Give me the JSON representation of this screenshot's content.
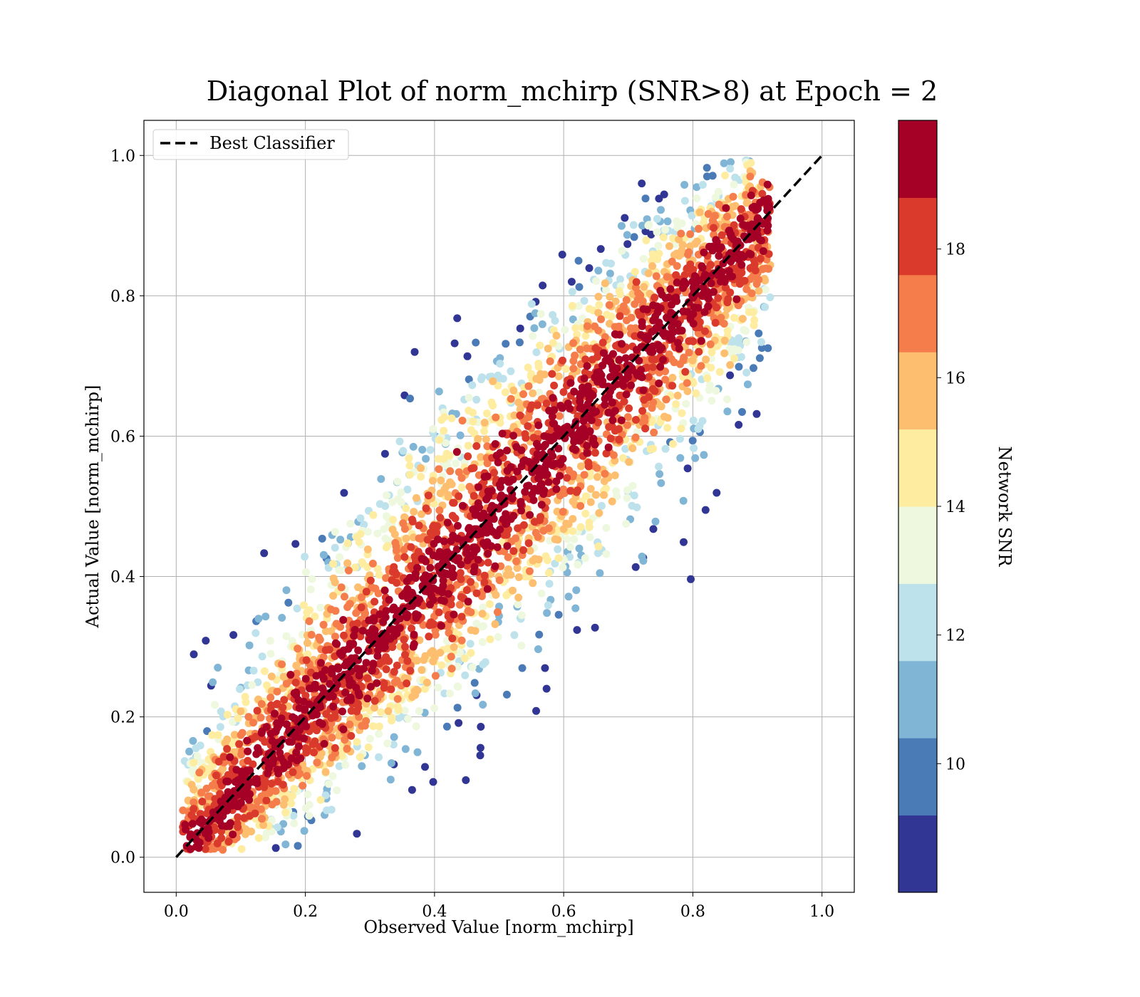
{
  "chart_data": {
    "type": "scatter",
    "title": "Diagonal Plot of norm_mchirp (SNR>8) at Epoch = 2",
    "xlabel": "Observed Value [norm_mchirp]",
    "ylabel": "Actual Value [norm_mchirp]",
    "xlim": [
      -0.05,
      1.05
    ],
    "ylim": [
      -0.05,
      1.05
    ],
    "xticks": [
      0.0,
      0.2,
      0.4,
      0.6,
      0.8,
      1.0
    ],
    "yticks": [
      0.0,
      0.2,
      0.4,
      0.6,
      0.8,
      1.0
    ],
    "grid": true,
    "legend": {
      "position": "top-left",
      "entries": [
        {
          "label": "Best Classifier",
          "style": "dashed",
          "color": "#000000"
        }
      ]
    },
    "reference_line": {
      "name": "Best Classifier",
      "x": [
        0.0,
        1.0
      ],
      "y": [
        0.0,
        1.0
      ]
    },
    "colorbar": {
      "label": "Network SNR",
      "ticks": [
        10,
        12,
        14,
        16,
        18
      ],
      "range": [
        8,
        20
      ],
      "bins": [
        {
          "from": 8,
          "to": 9.2,
          "color": "#313695"
        },
        {
          "from": 9.2,
          "to": 10.4,
          "color": "#4a7bb7"
        },
        {
          "from": 10.4,
          "to": 11.6,
          "color": "#80b5d5"
        },
        {
          "from": 11.6,
          "to": 12.8,
          "color": "#bde2ec"
        },
        {
          "from": 12.8,
          "to": 14.0,
          "color": "#eef8df"
        },
        {
          "from": 14.0,
          "to": 15.2,
          "color": "#feeda1"
        },
        {
          "from": 15.2,
          "to": 16.4,
          "color": "#fdbe6f"
        },
        {
          "from": 16.4,
          "to": 17.6,
          "color": "#f57d4b"
        },
        {
          "from": 17.6,
          "to": 18.8,
          "color": "#da3a2c"
        },
        {
          "from": 18.8,
          "to": 20.0,
          "color": "#a50026"
        }
      ]
    },
    "points_summary": {
      "x_range": [
        0.01,
        0.92
      ],
      "y_range": [
        0.01,
        1.0
      ],
      "trend": "points cluster along y = x; high SNR near the diagonal, low SNR spread away from it"
    }
  }
}
